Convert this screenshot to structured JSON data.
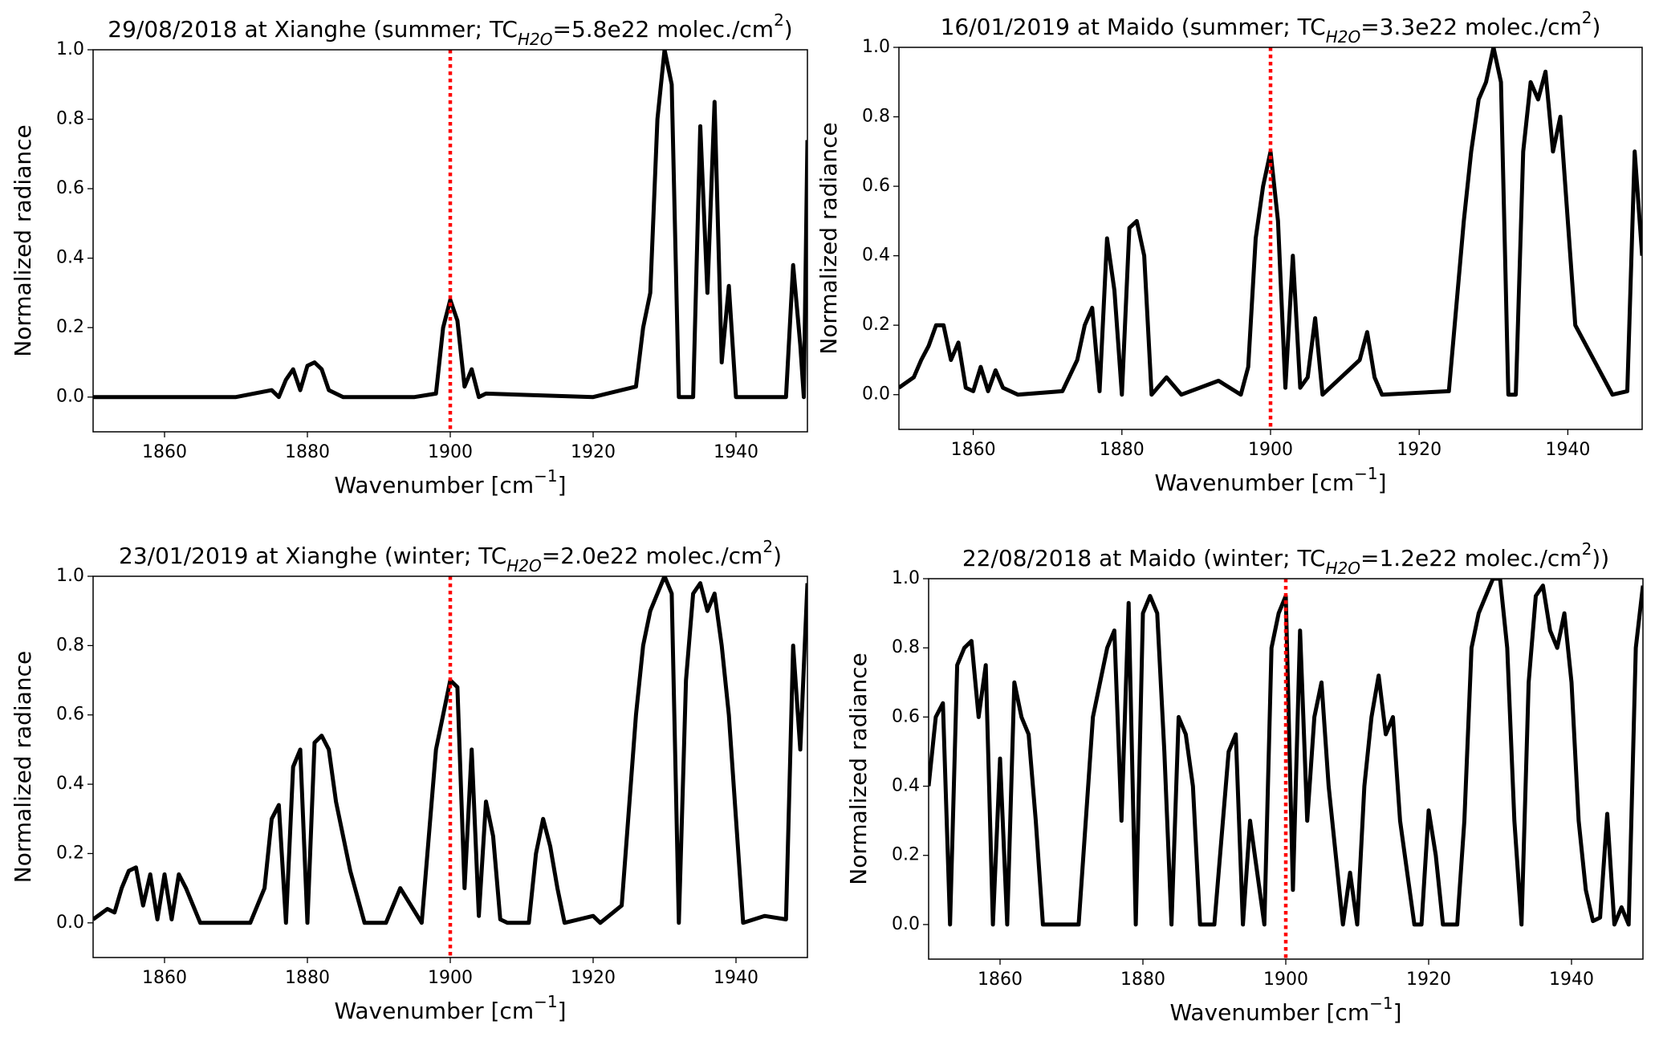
{
  "chart_data": [
    {
      "type": "line",
      "title": [
        {
          "text": "29/08/2018 at Xianghe (summer; TC",
          "style": "normal"
        },
        {
          "text": "H2O",
          "style": "sub"
        },
        {
          "text": "=5.8e22 molec./cm",
          "style": "normal"
        },
        {
          "text": "2",
          "style": "super"
        },
        {
          "text": ")",
          "style": "normal"
        }
      ],
      "xlabel": [
        {
          "text": "Wavenumber [cm",
          "style": "normal"
        },
        {
          "text": "−1",
          "style": "super"
        },
        {
          "text": "]",
          "style": "normal"
        }
      ],
      "ylabel": "Normalized radiance",
      "xlim": [
        1850,
        1950
      ],
      "xticks": [
        1860,
        1880,
        1900,
        1920,
        1940
      ],
      "ylim": [
        -0.1,
        1.0
      ],
      "yticks": [
        {
          "value": 0,
          "label": "0.0"
        },
        0.2,
        0.4,
        0.6,
        0.8,
        {
          "value": 1,
          "label": "1.0"
        }
      ],
      "vline": {
        "x": 1900,
        "color": "#ff0000"
      },
      "series": [
        {
          "color": "#000000",
          "x": [
            1850,
            1870,
            1875,
            1876,
            1877,
            1878,
            1879,
            1880,
            1881,
            1882,
            1883,
            1885,
            1895,
            1898,
            1899,
            1900,
            1901,
            1902,
            1903,
            1904,
            1905,
            1920,
            1926,
            1927,
            1928,
            1929,
            1930,
            1931,
            1932,
            1933,
            1934,
            1935,
            1936,
            1937,
            1938,
            1939,
            1940,
            1946,
            1947,
            1948,
            1949,
            1949.5,
            1950
          ],
          "values": [
            0,
            0,
            0.02,
            0,
            0.05,
            0.08,
            0.02,
            0.09,
            0.1,
            0.08,
            0.02,
            0,
            0,
            0.01,
            0.2,
            0.28,
            0.22,
            0.03,
            0.08,
            0,
            0.01,
            0,
            0.03,
            0.2,
            0.3,
            0.8,
            1.0,
            0.9,
            0,
            0,
            0,
            0.78,
            0.3,
            0.85,
            0.1,
            0.32,
            0,
            0,
            0,
            0.38,
            0.15,
            0,
            0.74
          ]
        }
      ]
    },
    {
      "type": "line",
      "title": [
        {
          "text": "16/01/2019 at Maido (summer; TC",
          "style": "normal"
        },
        {
          "text": "H2O",
          "style": "sub"
        },
        {
          "text": "=3.3e22 molec./cm",
          "style": "normal"
        },
        {
          "text": "2",
          "style": "super"
        },
        {
          "text": ")",
          "style": "normal"
        }
      ],
      "xlabel": [
        {
          "text": "Wavenumber [cm",
          "style": "normal"
        },
        {
          "text": "−1",
          "style": "super"
        },
        {
          "text": "]",
          "style": "normal"
        }
      ],
      "ylabel": "Normalized radiance",
      "xlim": [
        1850,
        1950
      ],
      "xticks": [
        1860,
        1880,
        1900,
        1920,
        1940
      ],
      "ylim": [
        -0.1,
        1.0
      ],
      "yticks": [
        {
          "value": 0,
          "label": "0.0"
        },
        0.2,
        0.4,
        0.6,
        0.8,
        {
          "value": 1,
          "label": "1.0"
        }
      ],
      "vline": {
        "x": 1900,
        "color": "#ff0000"
      },
      "series": [
        {
          "color": "#000000",
          "x": [
            1850,
            1852,
            1853,
            1854,
            1855,
            1856,
            1857,
            1858,
            1859,
            1860,
            1861,
            1862,
            1863,
            1864,
            1866,
            1872,
            1874,
            1875,
            1876,
            1877,
            1878,
            1879,
            1880,
            1881,
            1882,
            1883,
            1884,
            1886,
            1888,
            1893,
            1896,
            1897,
            1898,
            1899,
            1900,
            1901,
            1902,
            1903,
            1904,
            1905,
            1906,
            1907,
            1912,
            1913,
            1914,
            1915,
            1924,
            1926,
            1927,
            1928,
            1929,
            1930,
            1931,
            1932,
            1933,
            1934,
            1935,
            1936,
            1937,
            1938,
            1939,
            1940,
            1941,
            1946,
            1948,
            1949,
            1950
          ],
          "values": [
            0.02,
            0.05,
            0.1,
            0.14,
            0.2,
            0.2,
            0.1,
            0.15,
            0.02,
            0.01,
            0.08,
            0.01,
            0.07,
            0.02,
            0,
            0.01,
            0.1,
            0.2,
            0.25,
            0.01,
            0.45,
            0.3,
            0,
            0.48,
            0.5,
            0.4,
            0,
            0.05,
            0,
            0.04,
            0,
            0.08,
            0.45,
            0.6,
            0.7,
            0.5,
            0.02,
            0.4,
            0.02,
            0.05,
            0.22,
            0,
            0.1,
            0.18,
            0.05,
            0,
            0.01,
            0.5,
            0.7,
            0.85,
            0.9,
            1.0,
            0.9,
            0,
            0,
            0.7,
            0.9,
            0.85,
            0.93,
            0.7,
            0.8,
            0.5,
            0.2,
            0,
            0.01,
            0.7,
            0.4
          ]
        }
      ]
    },
    {
      "type": "line",
      "title": [
        {
          "text": "23/01/2019 at Xianghe (winter; TC",
          "style": "normal"
        },
        {
          "text": "H2O",
          "style": "sub"
        },
        {
          "text": "=2.0e22 molec./cm",
          "style": "normal"
        },
        {
          "text": "2",
          "style": "super"
        },
        {
          "text": ")",
          "style": "normal"
        }
      ],
      "xlabel": [
        {
          "text": "Wavenumber [cm",
          "style": "normal"
        },
        {
          "text": "−1",
          "style": "super"
        },
        {
          "text": "]",
          "style": "normal"
        }
      ],
      "ylabel": "Normalized radiance",
      "xlim": [
        1850,
        1950
      ],
      "xticks": [
        1860,
        1880,
        1900,
        1920,
        1940
      ],
      "ylim": [
        -0.1,
        1.0
      ],
      "yticks": [
        {
          "value": 0,
          "label": "0.0"
        },
        0.2,
        0.4,
        0.6,
        0.8,
        {
          "value": 1,
          "label": "1.0"
        }
      ],
      "vline": {
        "x": 1900,
        "color": "#ff0000"
      },
      "series": [
        {
          "color": "#000000",
          "x": [
            1850,
            1852,
            1853,
            1854,
            1855,
            1856,
            1857,
            1858,
            1859,
            1860,
            1861,
            1862,
            1863,
            1865,
            1872,
            1874,
            1875,
            1876,
            1877,
            1878,
            1879,
            1880,
            1881,
            1882,
            1883,
            1884,
            1886,
            1888,
            1891,
            1893,
            1896,
            1897,
            1898,
            1899,
            1900,
            1901,
            1902,
            1903,
            1904,
            1905,
            1906,
            1907,
            1908,
            1911,
            1912,
            1913,
            1914,
            1915,
            1916,
            1920,
            1921,
            1924,
            1926,
            1927,
            1928,
            1929,
            1930,
            1931,
            1932,
            1933,
            1934,
            1935,
            1936,
            1937,
            1938,
            1939,
            1940,
            1941,
            1944,
            1947,
            1948,
            1949,
            1950
          ],
          "values": [
            0.01,
            0.04,
            0.03,
            0.1,
            0.15,
            0.16,
            0.05,
            0.14,
            0.01,
            0.14,
            0.01,
            0.14,
            0.1,
            0,
            0,
            0.1,
            0.3,
            0.34,
            0,
            0.45,
            0.5,
            0,
            0.52,
            0.54,
            0.5,
            0.35,
            0.15,
            0,
            0,
            0.1,
            0,
            0.25,
            0.5,
            0.6,
            0.7,
            0.68,
            0.1,
            0.5,
            0.02,
            0.35,
            0.25,
            0.01,
            0,
            0,
            0.2,
            0.3,
            0.22,
            0.1,
            0,
            0.02,
            0,
            0.05,
            0.6,
            0.8,
            0.9,
            0.95,
            1.0,
            0.95,
            0,
            0.7,
            0.95,
            0.98,
            0.9,
            0.95,
            0.8,
            0.6,
            0.3,
            0,
            0.02,
            0.01,
            0.8,
            0.5,
            0.98
          ]
        }
      ]
    },
    {
      "type": "line",
      "title": [
        {
          "text": "22/08/2018 at Maido (winter; TC",
          "style": "normal"
        },
        {
          "text": "H2O",
          "style": "sub"
        },
        {
          "text": "=1.2e22 molec./cm",
          "style": "normal"
        },
        {
          "text": "2",
          "style": "super"
        },
        {
          "text": "))",
          "style": "normal"
        }
      ],
      "xlabel": [
        {
          "text": "Wavenumber [cm",
          "style": "normal"
        },
        {
          "text": "−1",
          "style": "super"
        },
        {
          "text": "]",
          "style": "normal"
        }
      ],
      "ylabel": "Normalized radiance",
      "xlim": [
        1850,
        1950
      ],
      "xticks": [
        1860,
        1880,
        1900,
        1920,
        1940
      ],
      "ylim": [
        -0.1,
        1.0
      ],
      "yticks": [
        {
          "value": 0,
          "label": "0.0"
        },
        0.2,
        0.4,
        0.6,
        0.8,
        {
          "value": 1,
          "label": "1.0"
        }
      ],
      "vline": {
        "x": 1900,
        "color": "#ff0000"
      },
      "series": [
        {
          "color": "#000000",
          "x": [
            1850,
            1851,
            1852,
            1853,
            1854,
            1855,
            1856,
            1857,
            1858,
            1859,
            1860,
            1861,
            1862,
            1863,
            1864,
            1865,
            1866,
            1871,
            1873,
            1875,
            1876,
            1877,
            1878,
            1879,
            1880,
            1881,
            1882,
            1883,
            1884,
            1885,
            1886,
            1887,
            1888,
            1890,
            1892,
            1893,
            1894,
            1895,
            1897,
            1898,
            1899,
            1900,
            1901,
            1902,
            1903,
            1904,
            1905,
            1906,
            1907,
            1908,
            1909,
            1910,
            1911,
            1912,
            1913,
            1914,
            1915,
            1916,
            1917,
            1918,
            1919,
            1920,
            1921,
            1922,
            1924,
            1925,
            1926,
            1927,
            1928,
            1929,
            1930,
            1931,
            1932,
            1933,
            1934,
            1935,
            1936,
            1937,
            1938,
            1939,
            1940,
            1941,
            1942,
            1943,
            1944,
            1945,
            1946,
            1947,
            1948,
            1949,
            1950
          ],
          "values": [
            0.4,
            0.6,
            0.64,
            0,
            0.75,
            0.8,
            0.82,
            0.6,
            0.75,
            0,
            0.48,
            0,
            0.7,
            0.6,
            0.55,
            0.3,
            0,
            0,
            0.6,
            0.8,
            0.85,
            0.3,
            0.93,
            0,
            0.9,
            0.95,
            0.9,
            0.5,
            0,
            0.6,
            0.55,
            0.4,
            0,
            0,
            0.5,
            0.55,
            0,
            0.3,
            0,
            0.8,
            0.9,
            0.95,
            0.1,
            0.85,
            0.3,
            0.6,
            0.7,
            0.4,
            0.2,
            0,
            0.15,
            0,
            0.4,
            0.6,
            0.72,
            0.55,
            0.6,
            0.3,
            0.15,
            0,
            0,
            0.33,
            0.2,
            0,
            0,
            0.3,
            0.8,
            0.9,
            0.95,
            1.0,
            1.0,
            0.8,
            0.3,
            0,
            0.7,
            0.95,
            0.98,
            0.85,
            0.8,
            0.9,
            0.7,
            0.3,
            0.1,
            0.01,
            0.02,
            0.32,
            0,
            0.05,
            0,
            0.8,
            0.98
          ]
        }
      ]
    }
  ]
}
